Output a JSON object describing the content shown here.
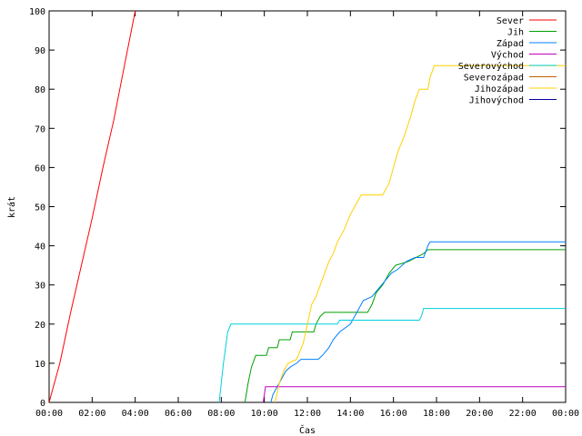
{
  "chart_data": {
    "type": "line",
    "title": "",
    "xlabel": "Čas",
    "ylabel": "krát",
    "xlim": [
      0,
      24
    ],
    "ylim": [
      0,
      100
    ],
    "x_ticks": [
      "00:00",
      "02:00",
      "04:00",
      "06:00",
      "08:00",
      "10:00",
      "12:00",
      "14:00",
      "16:00",
      "18:00",
      "20:00",
      "22:00",
      "00:00"
    ],
    "y_ticks": [
      0,
      10,
      20,
      30,
      40,
      50,
      60,
      70,
      80,
      90,
      100
    ],
    "grid": false,
    "legend_position": "top-right",
    "series": [
      {
        "name": "Sever",
        "color": "#ff0000",
        "points": [
          [
            0,
            0
          ],
          [
            0.5,
            10
          ],
          [
            1.0,
            23
          ],
          [
            1.5,
            35
          ],
          [
            2.0,
            47
          ],
          [
            2.5,
            60
          ],
          [
            3.0,
            72
          ],
          [
            3.5,
            86
          ],
          [
            4.0,
            100
          ]
        ]
      },
      {
        "name": "Jih",
        "color": "#00a000",
        "points": [
          [
            9.1,
            0
          ],
          [
            9.25,
            5
          ],
          [
            9.4,
            9
          ],
          [
            9.6,
            12
          ],
          [
            10.1,
            12
          ],
          [
            10.2,
            14
          ],
          [
            10.6,
            14
          ],
          [
            10.7,
            16
          ],
          [
            11.2,
            16
          ],
          [
            11.3,
            18
          ],
          [
            12.3,
            18
          ],
          [
            12.4,
            20
          ],
          [
            12.6,
            22
          ],
          [
            12.8,
            23
          ],
          [
            14.8,
            23
          ],
          [
            15.0,
            25
          ],
          [
            15.2,
            28
          ],
          [
            15.5,
            30
          ],
          [
            15.8,
            33
          ],
          [
            16.1,
            35
          ],
          [
            16.7,
            36
          ],
          [
            17.4,
            38
          ],
          [
            17.6,
            39
          ],
          [
            24,
            39
          ]
        ]
      },
      {
        "name": "Západ",
        "color": "#0080ff",
        "points": [
          [
            10.3,
            0
          ],
          [
            10.4,
            2
          ],
          [
            10.6,
            4
          ],
          [
            10.8,
            6
          ],
          [
            11.0,
            8
          ],
          [
            11.2,
            9
          ],
          [
            11.5,
            10
          ],
          [
            11.7,
            11
          ],
          [
            12.5,
            11
          ],
          [
            12.7,
            12
          ],
          [
            13.0,
            14
          ],
          [
            13.2,
            16
          ],
          [
            13.5,
            18
          ],
          [
            14.0,
            20
          ],
          [
            14.3,
            23
          ],
          [
            14.6,
            26
          ],
          [
            15.0,
            27
          ],
          [
            15.3,
            29
          ],
          [
            15.6,
            31
          ],
          [
            15.9,
            33
          ],
          [
            16.2,
            34
          ],
          [
            16.6,
            36
          ],
          [
            17.0,
            37
          ],
          [
            17.4,
            37
          ],
          [
            17.6,
            40
          ],
          [
            17.7,
            41
          ],
          [
            24,
            41
          ]
        ]
      },
      {
        "name": "Východ",
        "color": "#c000c0",
        "points": [
          [
            9.95,
            0
          ],
          [
            10.05,
            4
          ],
          [
            24,
            4
          ]
        ]
      },
      {
        "name": "Severovýchod",
        "color": "#00d0e0",
        "points": [
          [
            7.9,
            0
          ],
          [
            8.1,
            10
          ],
          [
            8.3,
            18
          ],
          [
            8.45,
            20
          ],
          [
            13.4,
            20
          ],
          [
            13.5,
            21
          ],
          [
            17.2,
            21
          ],
          [
            17.3,
            22
          ],
          [
            17.4,
            24
          ],
          [
            24,
            24
          ]
        ]
      },
      {
        "name": "Severozápad",
        "color": "#c06000",
        "points": []
      },
      {
        "name": "Jihozápad",
        "color": "#ffd000",
        "points": [
          [
            10.5,
            0
          ],
          [
            10.7,
            5
          ],
          [
            10.9,
            8
          ],
          [
            11.1,
            10
          ],
          [
            11.5,
            11
          ],
          [
            11.8,
            15
          ],
          [
            12.0,
            20
          ],
          [
            12.2,
            25
          ],
          [
            12.4,
            27
          ],
          [
            12.6,
            30
          ],
          [
            12.8,
            33
          ],
          [
            13.0,
            36
          ],
          [
            13.2,
            38
          ],
          [
            13.4,
            41
          ],
          [
            13.7,
            44
          ],
          [
            14.0,
            48
          ],
          [
            14.3,
            51
          ],
          [
            14.5,
            53
          ],
          [
            15.5,
            53
          ],
          [
            15.8,
            56
          ],
          [
            16.0,
            60
          ],
          [
            16.2,
            64
          ],
          [
            16.5,
            68
          ],
          [
            16.8,
            73
          ],
          [
            17.0,
            77
          ],
          [
            17.2,
            80
          ],
          [
            17.6,
            80
          ],
          [
            17.7,
            83
          ],
          [
            17.9,
            86
          ],
          [
            19.5,
            86
          ],
          [
            24,
            86
          ]
        ]
      },
      {
        "name": "Jihovýchod",
        "color": "#0000a0",
        "points": []
      }
    ]
  }
}
